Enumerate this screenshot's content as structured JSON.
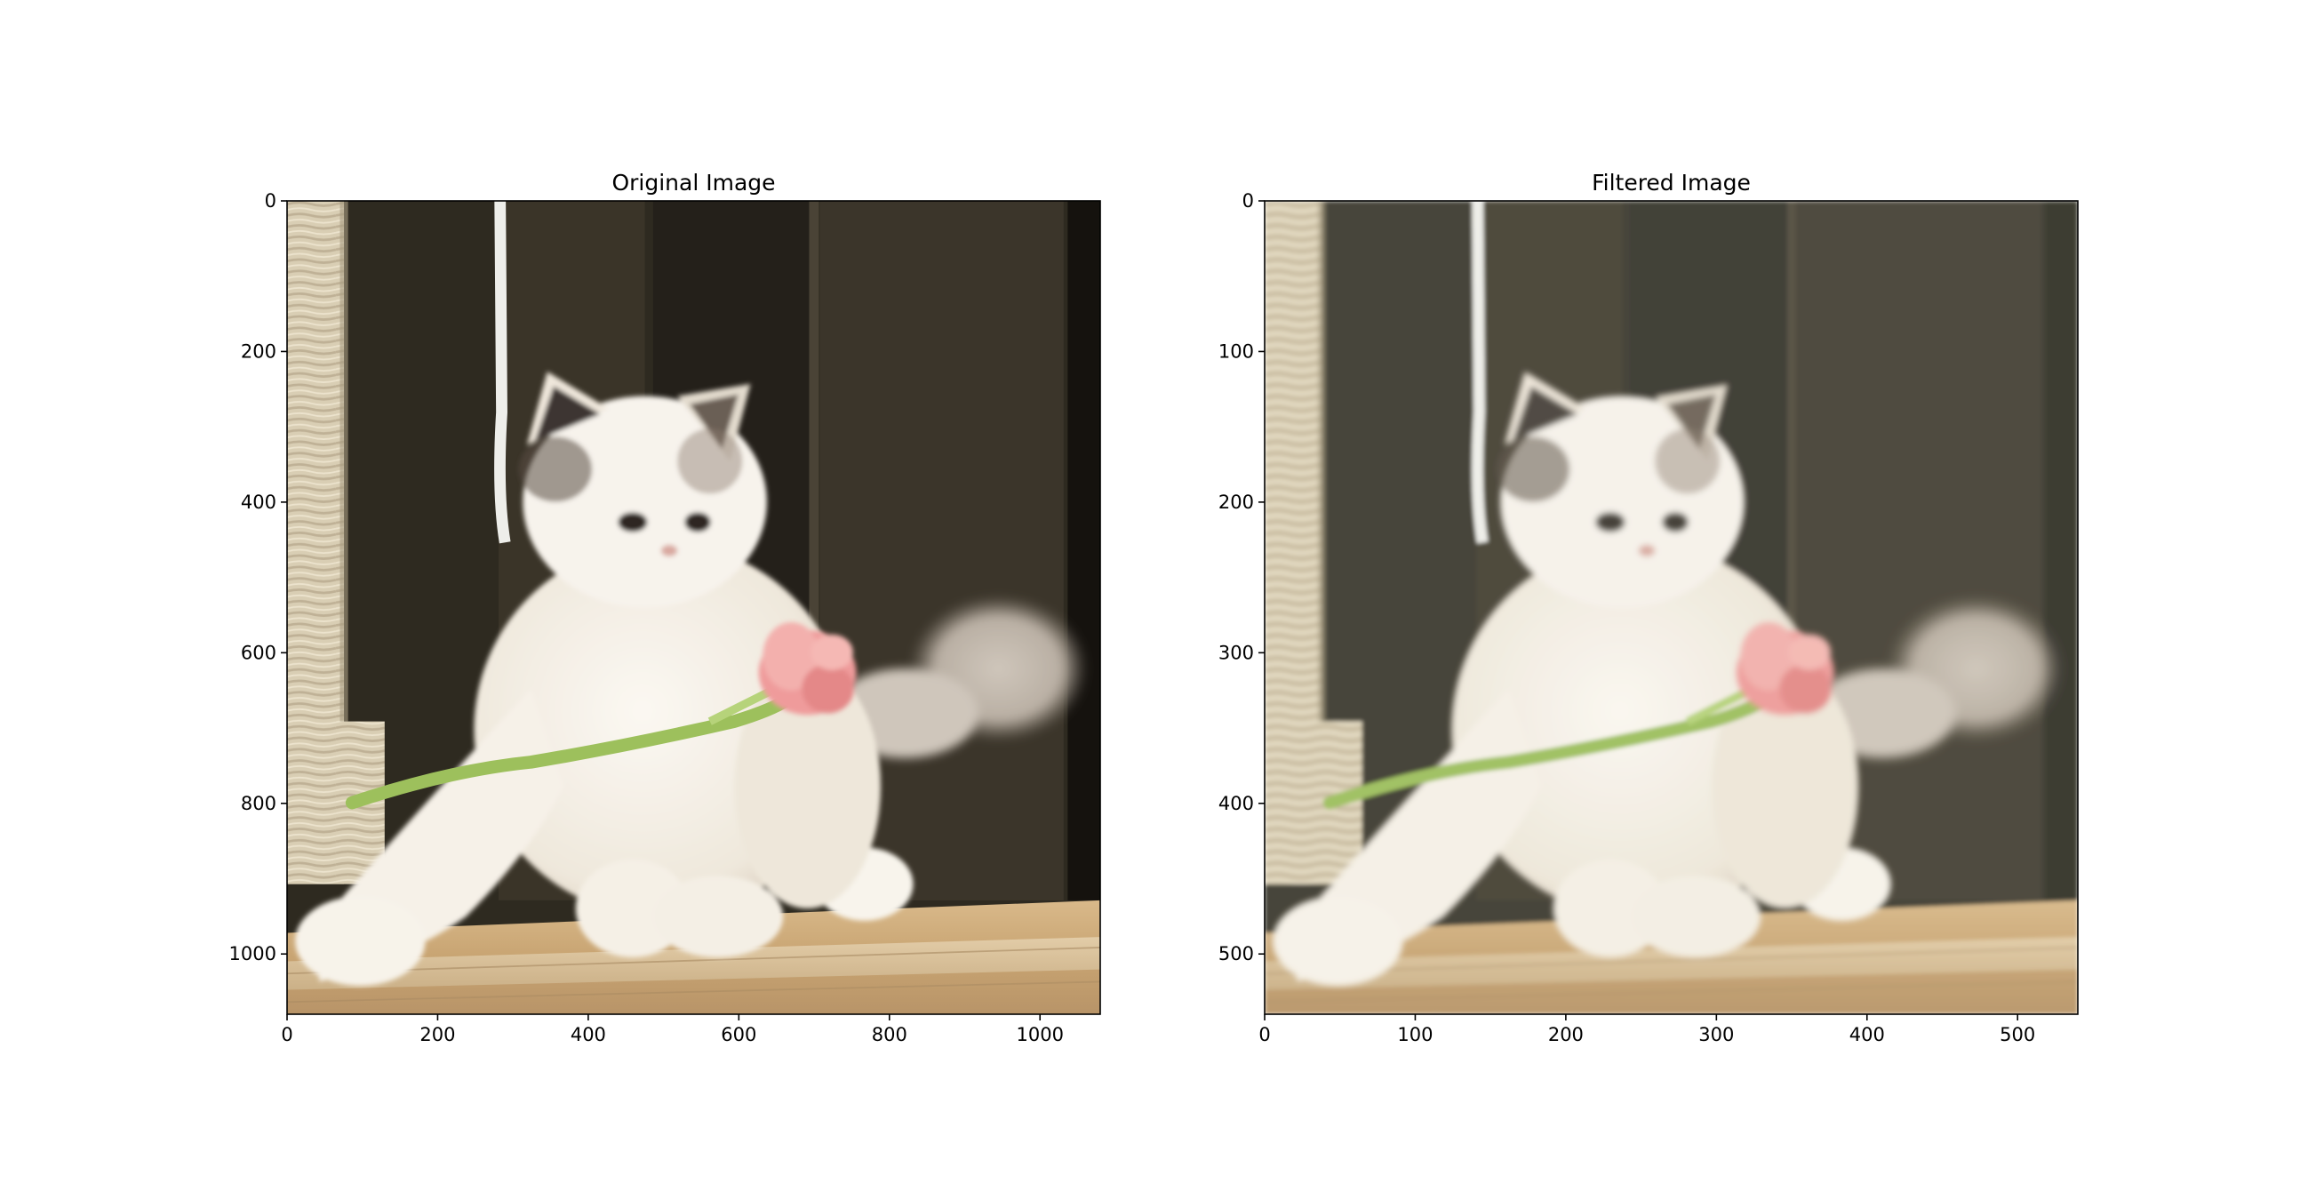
{
  "colors": {
    "background": "#ffffff",
    "wall_dark": "#2e2a20",
    "wall_mid": "#3b352a",
    "shelf": "#c9a77a",
    "cat_fur": "#f4efe6",
    "cat_ear": "#3d3430",
    "flower": "#f0a0a0",
    "stem": "#9bbf5a",
    "post_rope": "#d8ccb2"
  },
  "chart_data": [
    {
      "type": "image",
      "title": "Original Image",
      "xlim": [
        0,
        1080
      ],
      "ylim": [
        1080,
        0
      ],
      "xticks": [
        0,
        200,
        400,
        600,
        800,
        1000
      ],
      "yticks": [
        0,
        200,
        400,
        600,
        800,
        1000
      ],
      "xtick_labels": [
        "0",
        "200",
        "400",
        "600",
        "800",
        "1000"
      ],
      "ytick_labels": [
        "0",
        "200",
        "400",
        "600",
        "800",
        "1000"
      ],
      "image_description_icon": "kitten-with-tulip",
      "grid": false
    },
    {
      "type": "image",
      "title": "Filtered Image",
      "xlim": [
        0,
        540
      ],
      "ylim": [
        540,
        0
      ],
      "xticks": [
        0,
        100,
        200,
        300,
        400,
        500
      ],
      "yticks": [
        0,
        100,
        200,
        300,
        400,
        500
      ],
      "xtick_labels": [
        "0",
        "100",
        "200",
        "300",
        "400",
        "500"
      ],
      "ytick_labels": [
        "0",
        "100",
        "200",
        "300",
        "400",
        "500"
      ],
      "image_description_icon": "kitten-with-tulip-blurred",
      "grid": false
    }
  ]
}
